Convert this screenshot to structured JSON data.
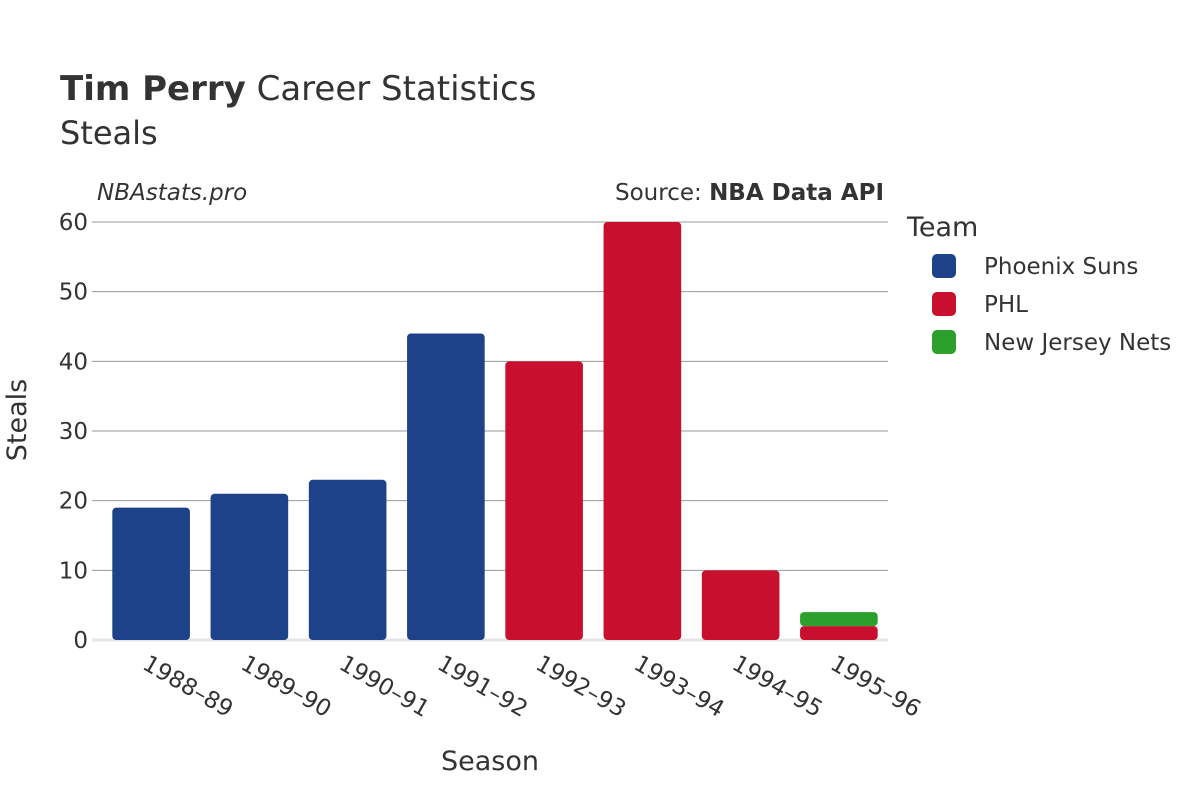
{
  "header": {
    "player_name": "Tim Perry",
    "title_rest": " Career Statistics",
    "subtitle": "Steals"
  },
  "watermark": "NBAstats.pro",
  "source": {
    "prefix": "Source: ",
    "name": "NBA Data API"
  },
  "legend": {
    "title": "Team",
    "items": [
      {
        "name": "Phoenix Suns",
        "color": "#1d428a"
      },
      {
        "name": "PHL",
        "color": "#c8102e"
      },
      {
        "name": "New Jersey Nets",
        "color": "#2ca02c"
      }
    ]
  },
  "chart_data": {
    "type": "bar",
    "stacked": true,
    "title": "Tim Perry Career Statistics",
    "subtitle": "Steals",
    "xlabel": "Season",
    "ylabel": "Steals",
    "ylim": [
      0,
      60
    ],
    "yticks": [
      0,
      10,
      20,
      30,
      40,
      50,
      60
    ],
    "grid": true,
    "legend_position": "right",
    "categories": [
      "1988–89",
      "1989–90",
      "1990–91",
      "1991–92",
      "1992–93",
      "1993–94",
      "1994–95",
      "1995–96"
    ],
    "series": [
      {
        "name": "Phoenix Suns",
        "color": "#1d428a",
        "values": [
          19,
          21,
          23,
          44,
          0,
          0,
          0,
          0
        ]
      },
      {
        "name": "PHL",
        "color": "#c8102e",
        "values": [
          0,
          0,
          0,
          0,
          40,
          60,
          10,
          2
        ]
      },
      {
        "name": "New Jersey Nets",
        "color": "#2ca02c",
        "values": [
          0,
          0,
          0,
          0,
          0,
          0,
          0,
          2
        ]
      }
    ]
  }
}
